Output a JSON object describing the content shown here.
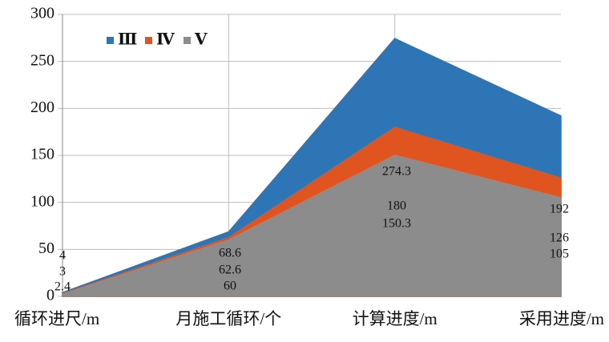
{
  "chart_data": {
    "type": "area",
    "categories": [
      "循环进尺/m",
      "月施工循环/个",
      "计算进度/m",
      "采用进度/m"
    ],
    "series": [
      {
        "name": "Ⅲ",
        "color": "#2e75b6",
        "values": [
          4,
          68.6,
          274.3,
          192
        ]
      },
      {
        "name": "Ⅳ",
        "color": "#e0541f",
        "values": [
          3,
          62.6,
          180,
          126
        ]
      },
      {
        "name": "Ⅴ",
        "color": "#8c8c8c",
        "values": [
          2.4,
          60,
          150.3,
          105
        ]
      }
    ],
    "ylim": [
      0,
      300
    ],
    "yticks": [
      0,
      50,
      100,
      150,
      200,
      250,
      300
    ],
    "grid": true
  }
}
